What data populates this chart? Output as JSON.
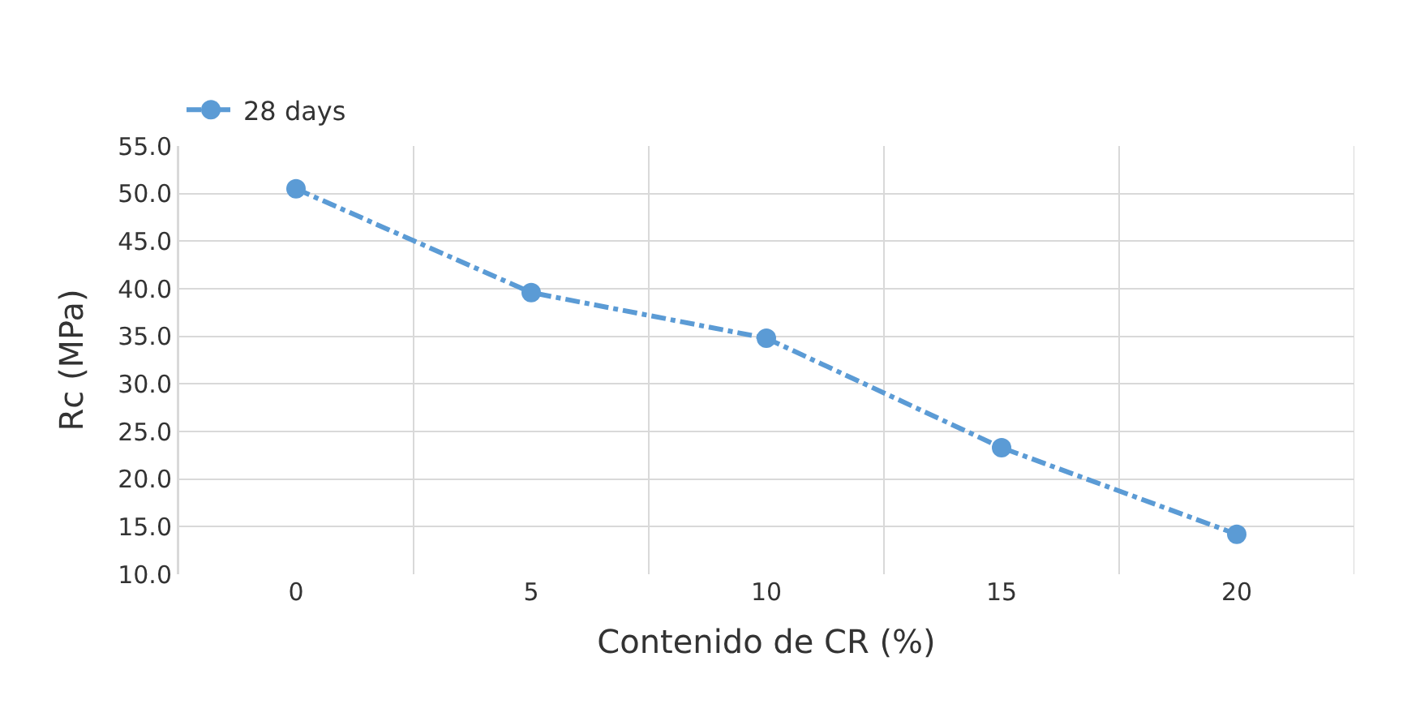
{
  "chart_data": {
    "type": "line",
    "xlabel": "Contenido de CR (%)",
    "ylabel": "Rc (MPa)",
    "categories": [
      "0",
      "5",
      "10",
      "15",
      "20"
    ],
    "series": [
      {
        "name": "28 days",
        "color": "#5b9bd5",
        "values": [
          50.5,
          39.6,
          34.8,
          23.3,
          14.2
        ]
      }
    ],
    "ylim": [
      10,
      55
    ],
    "yticks": [
      {
        "value": 10,
        "label": "10.0"
      },
      {
        "value": 15,
        "label": "15.0"
      },
      {
        "value": 20,
        "label": "20.0"
      },
      {
        "value": 25,
        "label": "25.0"
      },
      {
        "value": 30,
        "label": "30.0"
      },
      {
        "value": 35,
        "label": "35.0"
      },
      {
        "value": 40,
        "label": "40.0"
      },
      {
        "value": 45,
        "label": "45.0"
      },
      {
        "value": 50,
        "label": "50.0"
      },
      {
        "value": 55,
        "label": "55.0"
      }
    ],
    "grid": true,
    "legend": "top left",
    "marker": "circle",
    "line_style": "dashed"
  }
}
